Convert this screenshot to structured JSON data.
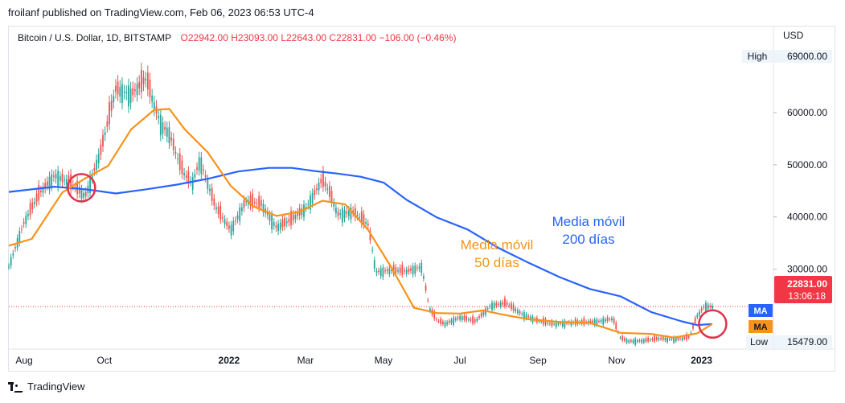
{
  "header": {
    "published": "froilanf published on TradingView.com, Feb 06, 2023 06:53 UTC-4"
  },
  "legend": {
    "symbol": "Bitcoin / U.S. Dollar, 1D, BITSTAMP",
    "open": "O22942.00",
    "high": "H23093.00",
    "low": "L22643.00",
    "close": "C22831.00",
    "change": "−106.00 (−0.46%)"
  },
  "footer": {
    "brand": "TradingView"
  },
  "chart_data": {
    "type": "line",
    "currency": "USD",
    "x_ticks": [
      "Aug",
      "Oct",
      "2022",
      "Mar",
      "May",
      "Jul",
      "Sep",
      "Nov",
      "2023"
    ],
    "y_ticks": [
      "30000.00",
      "40000.00",
      "50000.00",
      "60000.00"
    ],
    "y_range": [
      15000,
      72000
    ],
    "high_label": "High",
    "high_value": "69000.00",
    "low_label": "Low",
    "low_value": "15479.00",
    "last_price": "22831.00",
    "countdown": "13:06:18",
    "ma_badges": [
      "MA",
      "MA"
    ],
    "annotations": [
      {
        "text": [
          "Media móvil",
          "200 días"
        ],
        "color": "#2962ff"
      },
      {
        "text": [
          "Media móvil",
          "50 días"
        ],
        "color": "#f7931a"
      }
    ],
    "series": [
      {
        "key": "ma200",
        "color": "#2962ff",
        "x": [
          0,
          0.06,
          0.1,
          0.14,
          0.18,
          0.22,
          0.26,
          0.3,
          0.34,
          0.37,
          0.4,
          0.43,
          0.46,
          0.49,
          0.52,
          0.56,
          0.6,
          0.64,
          0.68,
          0.72,
          0.76,
          0.8,
          0.84,
          0.88,
          0.9,
          0.92
        ],
        "values": [
          44800,
          45800,
          45300,
          44500,
          45300,
          46200,
          47300,
          48700,
          49400,
          49400,
          48800,
          48300,
          47700,
          46600,
          43300,
          39900,
          37600,
          34100,
          31200,
          28500,
          26200,
          24800,
          21800,
          20000,
          19300,
          19500
        ]
      },
      {
        "key": "ma50",
        "color": "#f7931a",
        "x": [
          0,
          0.03,
          0.07,
          0.1,
          0.13,
          0.16,
          0.19,
          0.21,
          0.23,
          0.26,
          0.29,
          0.32,
          0.35,
          0.38,
          0.41,
          0.44,
          0.47,
          0.5,
          0.53,
          0.56,
          0.59,
          0.62,
          0.65,
          0.68,
          0.72,
          0.76,
          0.8,
          0.84,
          0.87,
          0.9,
          0.92
        ],
        "values": [
          34500,
          35800,
          44700,
          47400,
          49800,
          56800,
          60500,
          60700,
          56800,
          52400,
          46000,
          42000,
          40200,
          41000,
          43100,
          42400,
          37500,
          30400,
          22600,
          21600,
          21500,
          22100,
          21200,
          20400,
          19900,
          19700,
          17800,
          17600,
          16900,
          17700,
          19500
        ]
      },
      {
        "key": "price",
        "color": "#26a69a",
        "x": [
          0,
          0.02,
          0.04,
          0.06,
          0.08,
          0.1,
          0.12,
          0.14,
          0.16,
          0.18,
          0.19,
          0.2,
          0.21,
          0.22,
          0.23,
          0.24,
          0.25,
          0.27,
          0.29,
          0.31,
          0.33,
          0.35,
          0.37,
          0.39,
          0.41,
          0.42,
          0.43,
          0.45,
          0.47,
          0.48,
          0.5,
          0.52,
          0.54,
          0.55,
          0.56,
          0.57,
          0.59,
          0.61,
          0.63,
          0.65,
          0.67,
          0.69,
          0.71,
          0.73,
          0.75,
          0.77,
          0.79,
          0.8,
          0.81,
          0.83,
          0.85,
          0.87,
          0.88,
          0.89,
          0.9,
          0.91,
          0.92
        ],
        "values": [
          30500,
          39000,
          44500,
          48000,
          46500,
          44000,
          52500,
          64500,
          63500,
          66500,
          61500,
          57500,
          56000,
          51500,
          48000,
          46500,
          51000,
          42000,
          37500,
          43000,
          42500,
          38000,
          39500,
          42000,
          47200,
          44500,
          40500,
          41000,
          38500,
          29500,
          29800,
          29600,
          30500,
          22500,
          20200,
          19500,
          20800,
          20000,
          23000,
          23500,
          21500,
          20200,
          19500,
          19700,
          19800,
          20000,
          20500,
          16800,
          16200,
          16300,
          16700,
          16600,
          16700,
          17000,
          21000,
          23000,
          22800
        ]
      }
    ]
  }
}
